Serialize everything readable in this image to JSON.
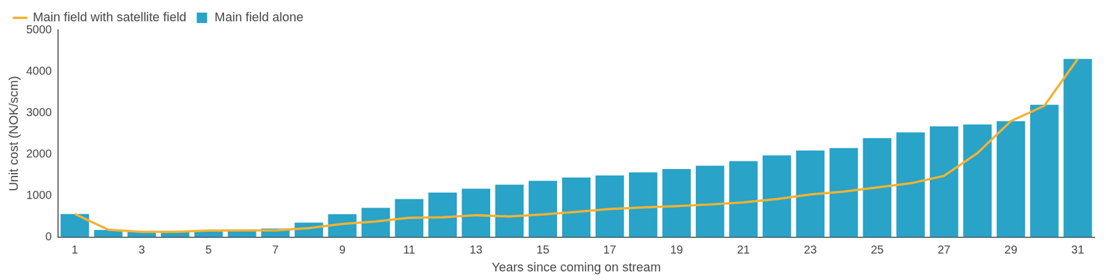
{
  "chart_data": {
    "type": "bar",
    "x_label": "Years since coming on stream",
    "y_label": "Unit cost (NOK/scm)",
    "categories": [
      1,
      null,
      3,
      null,
      5,
      null,
      7,
      null,
      9,
      null,
      11,
      null,
      13,
      null,
      15,
      null,
      17,
      null,
      19,
      null,
      21,
      null,
      23,
      null,
      25,
      null,
      27,
      null,
      29,
      null,
      31
    ],
    "series": [
      {
        "name": "Main field with satellite field",
        "type": "line",
        "color": "#f5b233",
        "values": [
          560,
          180,
          130,
          130,
          160,
          165,
          165,
          220,
          320,
          380,
          470,
          480,
          530,
          500,
          550,
          610,
          680,
          720,
          750,
          790,
          840,
          920,
          1030,
          1100,
          1200,
          1300,
          1480,
          2030,
          2800,
          3170,
          4300
        ]
      },
      {
        "name": "Main field alone",
        "type": "bar",
        "color": "#29a3c7",
        "values": [
          560,
          175,
          130,
          130,
          150,
          160,
          210,
          350,
          555,
          710,
          920,
          1075,
          1170,
          1265,
          1360,
          1440,
          1490,
          1565,
          1645,
          1725,
          1835,
          1975,
          2090,
          2150,
          2390,
          2530,
          2675,
          2720,
          2800,
          3195,
          4300
        ]
      }
    ],
    "ylim": [
      0,
      5000
    ],
    "yticks": [
      0,
      1000,
      2000,
      3000,
      4000,
      5000
    ],
    "grid": false,
    "legend": "upper left"
  }
}
